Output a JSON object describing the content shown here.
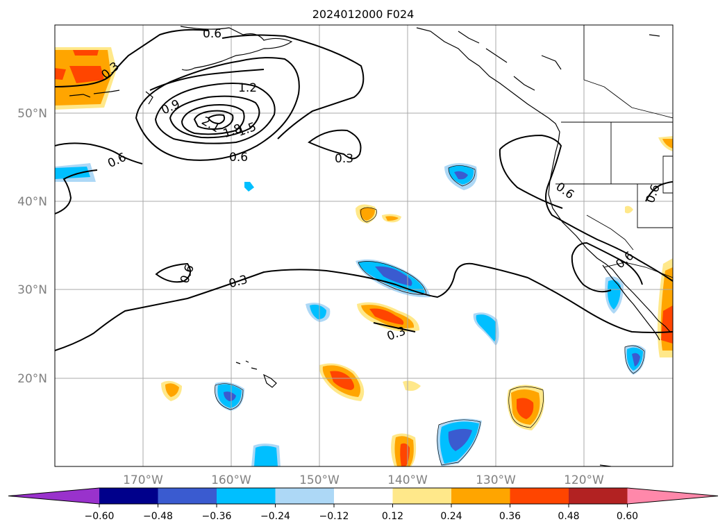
{
  "title": "2024012000 F024",
  "lat_labels": [
    "50°N",
    "40°N",
    "30°N",
    "20°N"
  ],
  "lon_labels": [
    "170°W",
    "160°W",
    "150°W",
    "140°W",
    "130°W",
    "120°W"
  ],
  "colorbar": {
    "ticks": [
      "−0.60",
      "−0.48",
      "−0.36",
      "−0.24",
      "−0.12",
      "0.12",
      "0.24",
      "0.36",
      "0.48",
      "0.60"
    ],
    "colors": [
      "#9932cc",
      "#00008b",
      "#3a5bd0",
      "#00bfff",
      "#add8f6",
      "#ffffff",
      "#ffe88a",
      "#ffa500",
      "#ff4500",
      "#b22222",
      "#ff88aa"
    ]
  },
  "contour_labels": [
    "0.6",
    "0.3",
    "0.9",
    "1.2",
    "2.1",
    "1.8",
    "1.5",
    "0.6",
    "0.3",
    "0.6",
    "0.6",
    "0.3",
    "0.3",
    "0.6",
    "0.6",
    "0.6"
  ]
}
